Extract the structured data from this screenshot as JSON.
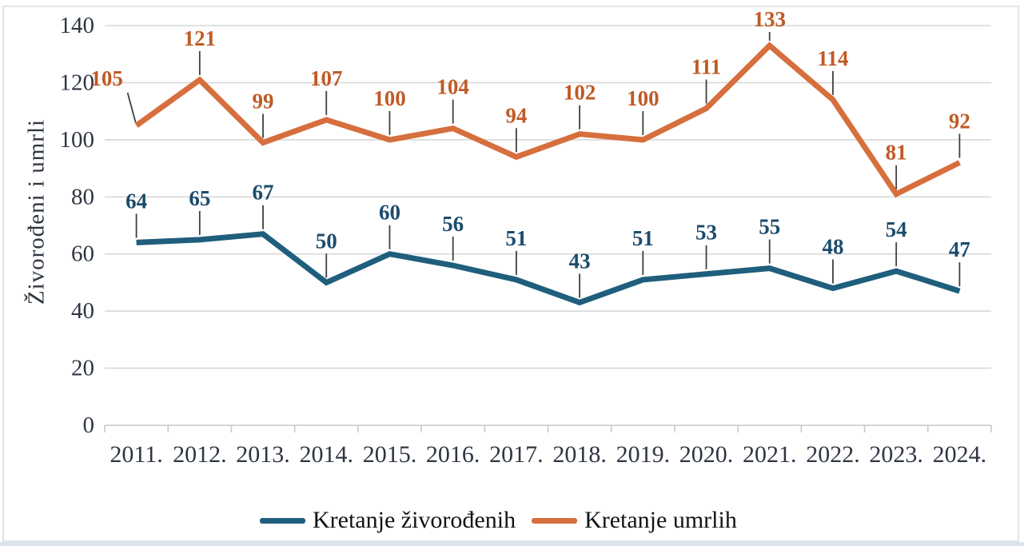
{
  "chart_data": {
    "type": "line",
    "title": "",
    "xlabel": "",
    "ylabel": "Živorođeni i umrli",
    "categories": [
      "2011.",
      "2012.",
      "2013.",
      "2014.",
      "2015.",
      "2016.",
      "2017.",
      "2018.",
      "2019.",
      "2020.",
      "2021.",
      "2022.",
      "2023.",
      "2024."
    ],
    "series": [
      {
        "name": "Kretanje živorođenih",
        "values": [
          64,
          65,
          67,
          50,
          60,
          56,
          51,
          43,
          51,
          53,
          55,
          48,
          54,
          47
        ],
        "color": "#1f5e7c",
        "label_color": "#1c4c6d",
        "label_overrides": {}
      },
      {
        "name": "Kretanje umrlih",
        "values": [
          105,
          121,
          99,
          107,
          100,
          104,
          94,
          102,
          100,
          111,
          133,
          114,
          81,
          92
        ],
        "color": "#d66f3d",
        "label_color": "#c05a26",
        "label_overrides": {
          "0": {
            "dx": -37,
            "dy": -59,
            "slant": true
          },
          "10": {
            "dy": -33
          }
        }
      }
    ],
    "ylim": [
      0,
      140
    ],
    "y_ticks": [
      0,
      20,
      40,
      60,
      80,
      100,
      120,
      140
    ],
    "grid": true,
    "legend_position": "bottom"
  },
  "colors": {
    "grid": "#d8d8d8",
    "axis": "#c9c9c9",
    "leader": "#3f3f3f",
    "tick_text": "#2e3642",
    "background": "#ffffff",
    "frame_border": "#e4e4e4",
    "bottom_strip": "#dde3ea"
  }
}
